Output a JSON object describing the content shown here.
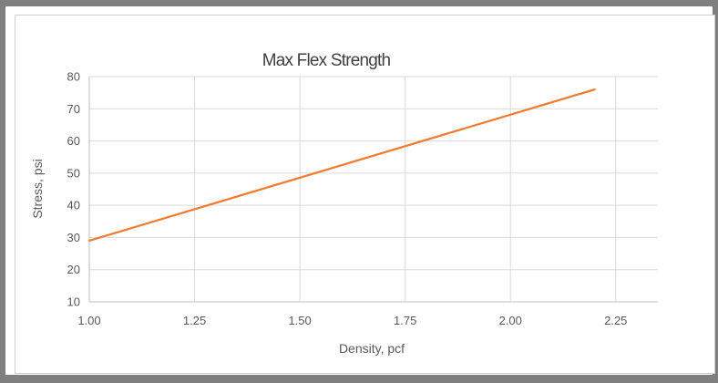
{
  "chart_data": {
    "type": "line",
    "title": "Max Flex Strength",
    "xlabel": "Density, pcf",
    "ylabel": "Stress, psi",
    "xlim": [
      1.0,
      2.35
    ],
    "ylim": [
      10,
      80
    ],
    "x_ticks": [
      "1.00",
      "1.25",
      "1.50",
      "1.75",
      "2.00",
      "2.25"
    ],
    "y_ticks": [
      "10",
      "20",
      "30",
      "40",
      "50",
      "60",
      "70",
      "80"
    ],
    "grid": true,
    "legend": "none",
    "series": [
      {
        "color": "#ed7d31",
        "x": [
          1.0,
          2.2
        ],
        "y": [
          29,
          76
        ]
      }
    ]
  }
}
